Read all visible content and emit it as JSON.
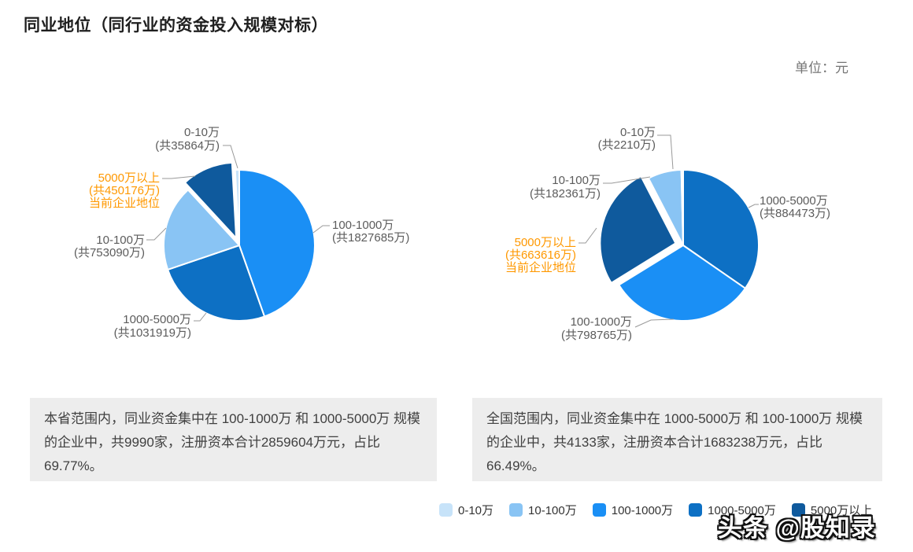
{
  "header": {
    "title": "同业地位（同行业的资金投入规模对标）",
    "unit_label": "单位：元"
  },
  "current_position_label": "当前企业地位",
  "watermark": "头条 @股知录",
  "chart_data": {
    "type": "pie",
    "legend_position": "bottom",
    "legend": [
      {
        "label": "0-10万",
        "color": "#c7e3f9"
      },
      {
        "label": "10-100万",
        "color": "#89c4f4"
      },
      {
        "label": "100-1000万",
        "color": "#1a8ff5"
      },
      {
        "label": "1000-5000万",
        "color": "#0d70c4"
      },
      {
        "label": "5000万以上",
        "color": "#0f5a9d"
      }
    ],
    "charts": [
      {
        "slices": [
          {
            "label": "0-10万",
            "amount_label": "(共35864万)",
            "value": 35864
          },
          {
            "label": "10-100万",
            "amount_label": "(共753090万)",
            "value": 753090
          },
          {
            "label": "100-1000万",
            "amount_label": "(共1827685万)",
            "value": 1827685
          },
          {
            "label": "1000-5000万",
            "amount_label": "(共1031919万)",
            "value": 1031919
          },
          {
            "label": "5000万以上",
            "amount_label": "(共450176万)",
            "value": 450176,
            "current_company": true,
            "exploded": true
          }
        ],
        "summary": "本省范围内，同业资金集中在 100-1000万 和 1000-5000万 规模的企业中，共9990家，注册资本合计2859604万元，占比69.77%。"
      },
      {
        "slices": [
          {
            "label": "0-10万",
            "amount_label": "(共2210万)",
            "value": 2210
          },
          {
            "label": "10-100万",
            "amount_label": "(共182361万)",
            "value": 182361
          },
          {
            "label": "100-1000万",
            "amount_label": "(共798765万)",
            "value": 798765
          },
          {
            "label": "1000-5000万",
            "amount_label": "(共884473万)",
            "value": 884473
          },
          {
            "label": "5000万以上",
            "amount_label": "(共663616万)",
            "value": 663616,
            "current_company": true,
            "exploded": true
          }
        ],
        "summary": "全国范围内，同业资金集中在 1000-5000万 和 100-1000万 规模的企业中，共4133家，注册资本合计1683238万元，占比66.49%。"
      }
    ]
  }
}
